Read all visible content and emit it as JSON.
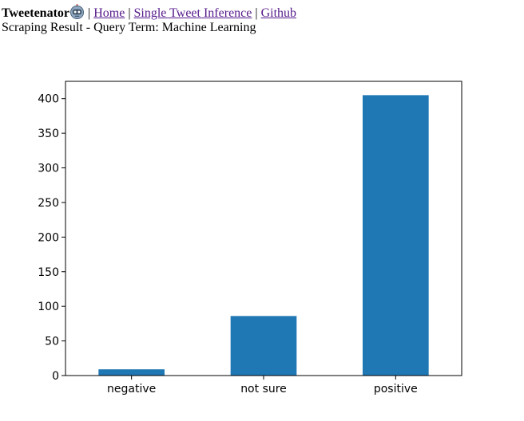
{
  "nav": {
    "brand": "Tweetenator",
    "brand_icon": "robot-icon",
    "separator": "|",
    "links": [
      {
        "label": "Home"
      },
      {
        "label": "Single Tweet Inference"
      },
      {
        "label": "Github"
      }
    ]
  },
  "subtitle": "Scraping Result - Query Term: Machine Learning",
  "chart_data": {
    "type": "bar",
    "title": "",
    "xlabel": "",
    "ylabel": "",
    "categories": [
      "negative",
      "not sure",
      "positive"
    ],
    "values": [
      9,
      86,
      405
    ],
    "ylim": [
      0,
      425
    ],
    "yticks": [
      0,
      50,
      100,
      150,
      200,
      250,
      300,
      350,
      400
    ],
    "bar_color": "#1f77b4",
    "grid": false
  }
}
